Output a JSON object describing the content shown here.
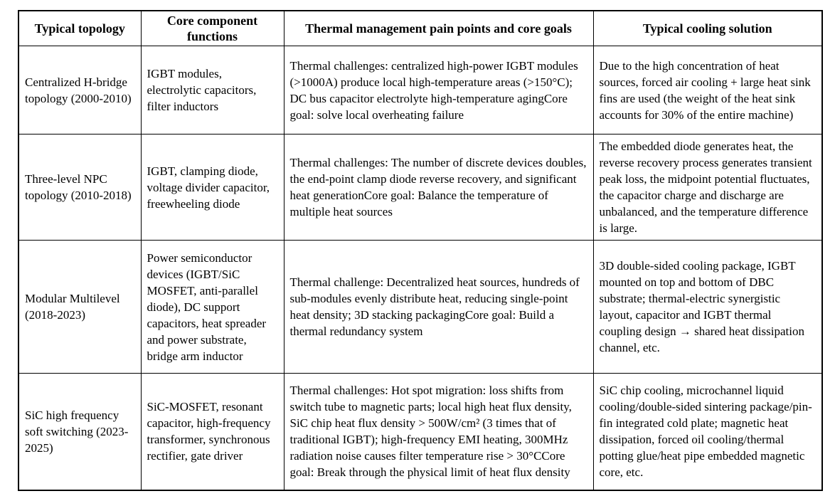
{
  "page": {
    "background_color": "#ffffff",
    "border_color": "#000000",
    "text_color": "#000000"
  },
  "table": {
    "headers": [
      "Typical topology",
      "Core component functions",
      "Thermal management pain points and core goals",
      "Typical cooling solution"
    ],
    "rows": [
      {
        "topology": "Centralized H-bridge topology (2000-2010)",
        "components": "IGBT modules, electrolytic capacitors, filter inductors",
        "pain_points": "Thermal challenges: centralized high-power IGBT modules (>1000A) produce local high-temperature areas (>150°C); DC bus capacitor electrolyte high-temperature agingCore goal: solve local overheating failure",
        "cooling": "Due to the high concentration of heat sources, forced air cooling + large heat sink fins are used (the weight of the heat sink accounts for 30% of the entire machine)"
      },
      {
        "topology": "Three-level NPC topology (2010-2018)",
        "components": "IGBT, clamping diode, voltage divider capacitor, freewheeling diode",
        "pain_points": "Thermal challenges: The number of discrete devices doubles, the end-point clamp diode reverse recovery, and significant heat generationCore goal: Balance the temperature of multiple heat sources",
        "cooling": "The embedded diode generates heat, the reverse recovery process generates transient peak loss, the midpoint potential fluctuates, the capacitor charge and discharge are unbalanced, and the temperature difference is large."
      },
      {
        "topology": "Modular Multilevel (2018-2023)",
        "components": "Power semiconductor devices (IGBT/SiC MOSFET, anti-parallel diode), DC support capacitors, heat spreader and power substrate, bridge arm inductor",
        "pain_points": "Thermal challenge: Decentralized heat sources, hundreds of sub-modules evenly distribute heat, reducing single-point heat density; 3D stacking packagingCore goal: Build a thermal redundancy system",
        "cooling": "3D double-sided cooling package, IGBT mounted on top and bottom of DBC substrate; thermal-electric synergistic layout, capacitor and IGBT thermal coupling design → shared heat dissipation channel, etc."
      },
      {
        "topology": "SiC high frequency soft switching (2023-2025)",
        "components": "SiC-MOSFET, resonant capacitor, high-frequency transformer, synchronous rectifier, gate driver",
        "pain_points": "Thermal challenges: Hot spot migration: loss shifts from switch tube to magnetic parts; local high heat flux density, SiC chip heat flux density > 500W/cm² (3 times that of traditional IGBT); high-frequency EMI heating, 300MHz radiation noise causes filter temperature rise > 30°CCore goal: Break through the physical limit of heat flux density",
        "cooling": "SiC chip cooling, microchannel liquid cooling/double-sided sintering package/pin-fin integrated cold plate; magnetic heat dissipation, forced oil cooling/thermal potting glue/heat pipe embedded magnetic core, etc."
      }
    ]
  }
}
